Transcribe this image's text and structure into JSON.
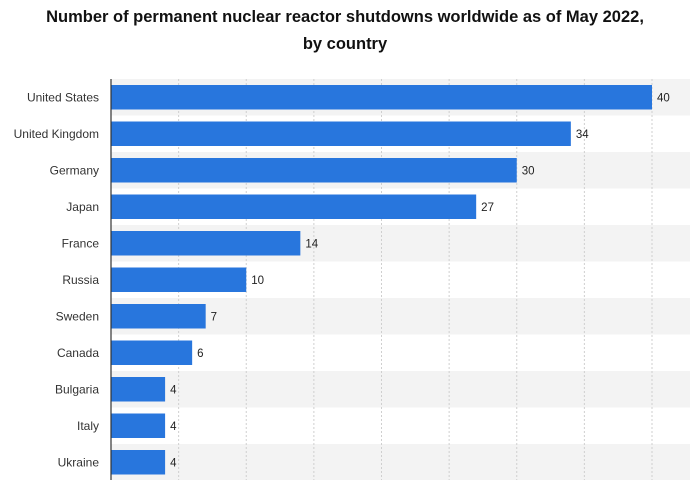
{
  "chart_data": {
    "type": "bar",
    "orientation": "horizontal",
    "title": "Number of permanent nuclear reactor shutdowns worldwide as of May 2022, by country",
    "categories": [
      "United States",
      "United Kingdom",
      "Germany",
      "Japan",
      "France",
      "Russia",
      "Sweden",
      "Canada",
      "Bulgaria",
      "Italy",
      "Ukraine"
    ],
    "values": [
      40,
      34,
      30,
      27,
      14,
      10,
      7,
      6,
      4,
      4,
      4
    ],
    "xlim": [
      0,
      43
    ],
    "grid": true,
    "bar_color": "#2876dd",
    "data_labels": true
  }
}
